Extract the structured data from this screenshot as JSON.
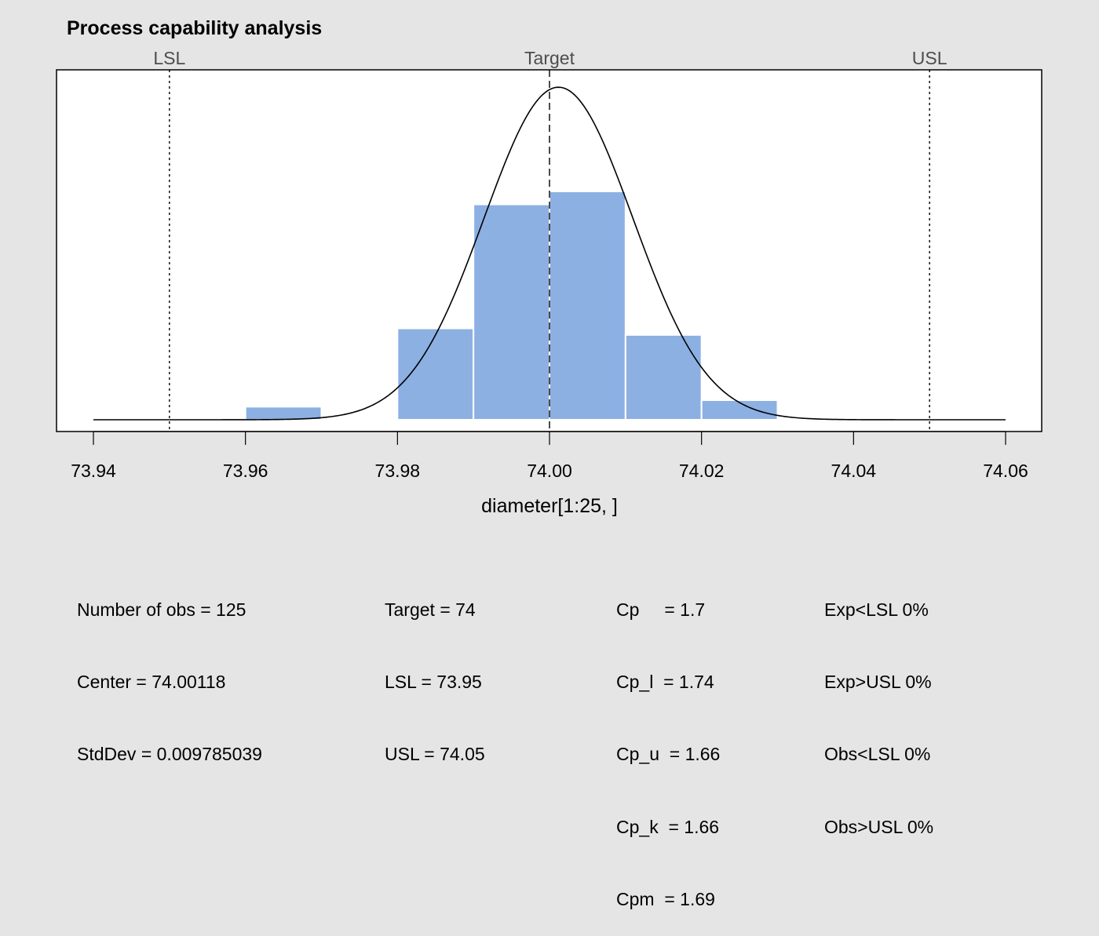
{
  "chart_data": {
    "type": "bar",
    "title": "Process capability analysis",
    "xlabel": "diameter[1:25, ]",
    "ylabel": "",
    "xlim": [
      73.94,
      74.06
    ],
    "x_ticks": [
      "73.94",
      "73.96",
      "73.98",
      "74.00",
      "74.02",
      "74.04",
      "74.06"
    ],
    "bins": [
      {
        "from": 73.96,
        "to": 73.97,
        "density": 1.6
      },
      {
        "from": 73.98,
        "to": 73.99,
        "density": 11.2
      },
      {
        "from": 73.99,
        "to": 74.0,
        "density": 26.4
      },
      {
        "from": 74.0,
        "to": 74.01,
        "density": 28.0
      },
      {
        "from": 74.01,
        "to": 74.02,
        "density": 10.4
      },
      {
        "from": 74.02,
        "to": 74.03,
        "density": 2.4
      }
    ],
    "ylim": [
      0,
      42.9
    ],
    "normal_curve": {
      "mean": 74.00118,
      "sd": 0.009785039
    },
    "spec_lines": [
      {
        "label": "LSL",
        "value": 73.95,
        "style": "dotted"
      },
      {
        "label": "Target",
        "value": 74.0,
        "style": "dashed"
      },
      {
        "label": "USL",
        "value": 74.05,
        "style": "dotted"
      }
    ],
    "bar_color": "#8cb0e2",
    "grid": false
  },
  "stats": {
    "col1": [
      "Number of obs = 125",
      "Center = 74.00118",
      "StdDev = 0.009785039"
    ],
    "col2": [
      "Target = 74",
      "LSL = 73.95",
      "USL = 74.05"
    ],
    "col3": [
      "Cp     = 1.7",
      "Cp_l  = 1.74",
      "Cp_u  = 1.66",
      "Cp_k  = 1.66",
      "Cpm  = 1.69"
    ],
    "col4": [
      "Exp<LSL 0%",
      "Exp>USL 0%",
      "Obs<LSL 0%",
      "Obs>USL 0%"
    ]
  }
}
